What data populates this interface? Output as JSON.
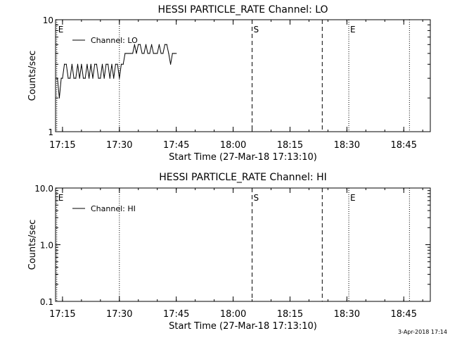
{
  "footer": {
    "timestamp": "3-Apr-2018 17:14"
  },
  "chart_data": [
    {
      "type": "line",
      "title": "HESSI PARTICLE_RATE Channel: LO",
      "xlabel": "Start Time (27-Mar-18 17:13:10)",
      "ylabel": "Counts/sec",
      "y_scale": "log",
      "ylim": [
        1,
        10
      ],
      "y_ticks": [
        1,
        10
      ],
      "y_tick_labels": [
        "1",
        "10"
      ],
      "xlim": [
        "17:13:10",
        "18:52:00"
      ],
      "x_ticks": [
        "17:15",
        "17:30",
        "17:45",
        "18:00",
        "18:15",
        "18:30",
        "18:45"
      ],
      "legend": {
        "position": "top-left",
        "entries": [
          "Channel: LO"
        ]
      },
      "markers": [
        {
          "time": "17:13:30",
          "label": "E",
          "style": "dotted"
        },
        {
          "time": "17:30:00",
          "label": "",
          "style": "dotted"
        },
        {
          "time": "18:05:00",
          "label": "S",
          "style": "dashed"
        },
        {
          "time": "18:23:30",
          "label": "",
          "style": "dashed"
        },
        {
          "time": "18:30:30",
          "label": "E",
          "style": "dotted"
        },
        {
          "time": "18:46:30",
          "label": "",
          "style": "dotted"
        }
      ],
      "series": [
        {
          "name": "Channel: LO",
          "x": [
            "17:13:40",
            "17:14:10",
            "17:14:40",
            "17:15:00",
            "17:15:30",
            "17:16:00",
            "17:16:30",
            "17:17:00",
            "17:17:30",
            "17:18:00",
            "17:18:30",
            "17:19:00",
            "17:19:30",
            "17:20:00",
            "17:20:30",
            "17:21:00",
            "17:21:30",
            "17:22:00",
            "17:22:30",
            "17:23:00",
            "17:23:30",
            "17:24:00",
            "17:24:30",
            "17:25:00",
            "17:25:30",
            "17:26:00",
            "17:26:30",
            "17:27:00",
            "17:27:30",
            "17:28:00",
            "17:28:30",
            "17:29:00",
            "17:29:30",
            "17:30:00",
            "17:30:30",
            "17:31:00",
            "17:31:30",
            "17:32:00",
            "17:32:30",
            "17:33:00",
            "17:33:30",
            "17:34:00",
            "17:34:30",
            "17:35:00",
            "17:35:30",
            "17:36:00",
            "17:36:30",
            "17:37:00",
            "17:37:30",
            "17:38:00",
            "17:38:30",
            "17:39:00",
            "17:39:30",
            "17:40:00",
            "17:40:30",
            "17:41:00",
            "17:41:30",
            "17:42:00",
            "17:42:30",
            "17:43:00",
            "17:43:30",
            "17:44:00",
            "17:44:30",
            "17:45:00"
          ],
          "values": [
            3,
            2,
            3,
            3,
            4,
            4,
            3,
            3,
            4,
            3,
            3,
            4,
            3,
            4,
            3,
            3,
            4,
            3,
            4,
            3,
            4,
            4,
            3,
            3,
            4,
            3,
            4,
            4,
            3,
            4,
            3,
            4,
            4,
            3,
            4,
            4,
            5,
            5,
            5,
            5,
            5,
            6,
            5,
            6,
            6,
            5,
            5,
            6,
            5,
            5,
            6,
            5,
            5,
            5,
            6,
            5,
            5,
            6,
            6,
            5,
            4,
            5,
            5,
            5
          ]
        }
      ]
    },
    {
      "type": "line",
      "title": "HESSI PARTICLE_RATE Channel: HI",
      "xlabel": "Start Time (27-Mar-18 17:13:10)",
      "ylabel": "Counts/sec",
      "y_scale": "log",
      "ylim": [
        0.1,
        10
      ],
      "y_ticks": [
        0.1,
        1,
        10
      ],
      "y_tick_labels": [
        "0.1",
        "1.0",
        "10.0"
      ],
      "xlim": [
        "17:13:10",
        "18:52:00"
      ],
      "x_ticks": [
        "17:15",
        "17:30",
        "17:45",
        "18:00",
        "18:15",
        "18:30",
        "18:45"
      ],
      "legend": {
        "position": "top-left",
        "entries": [
          "Channel: HI"
        ]
      },
      "markers": [
        {
          "time": "17:13:30",
          "label": "E",
          "style": "dotted"
        },
        {
          "time": "17:30:00",
          "label": "",
          "style": "dotted"
        },
        {
          "time": "18:05:00",
          "label": "S",
          "style": "dashed"
        },
        {
          "time": "18:23:30",
          "label": "",
          "style": "dashed"
        },
        {
          "time": "18:30:30",
          "label": "E",
          "style": "dotted"
        },
        {
          "time": "18:46:30",
          "label": "",
          "style": "dotted"
        }
      ],
      "series": [
        {
          "name": "Channel: HI",
          "x": [],
          "values": []
        }
      ]
    }
  ]
}
